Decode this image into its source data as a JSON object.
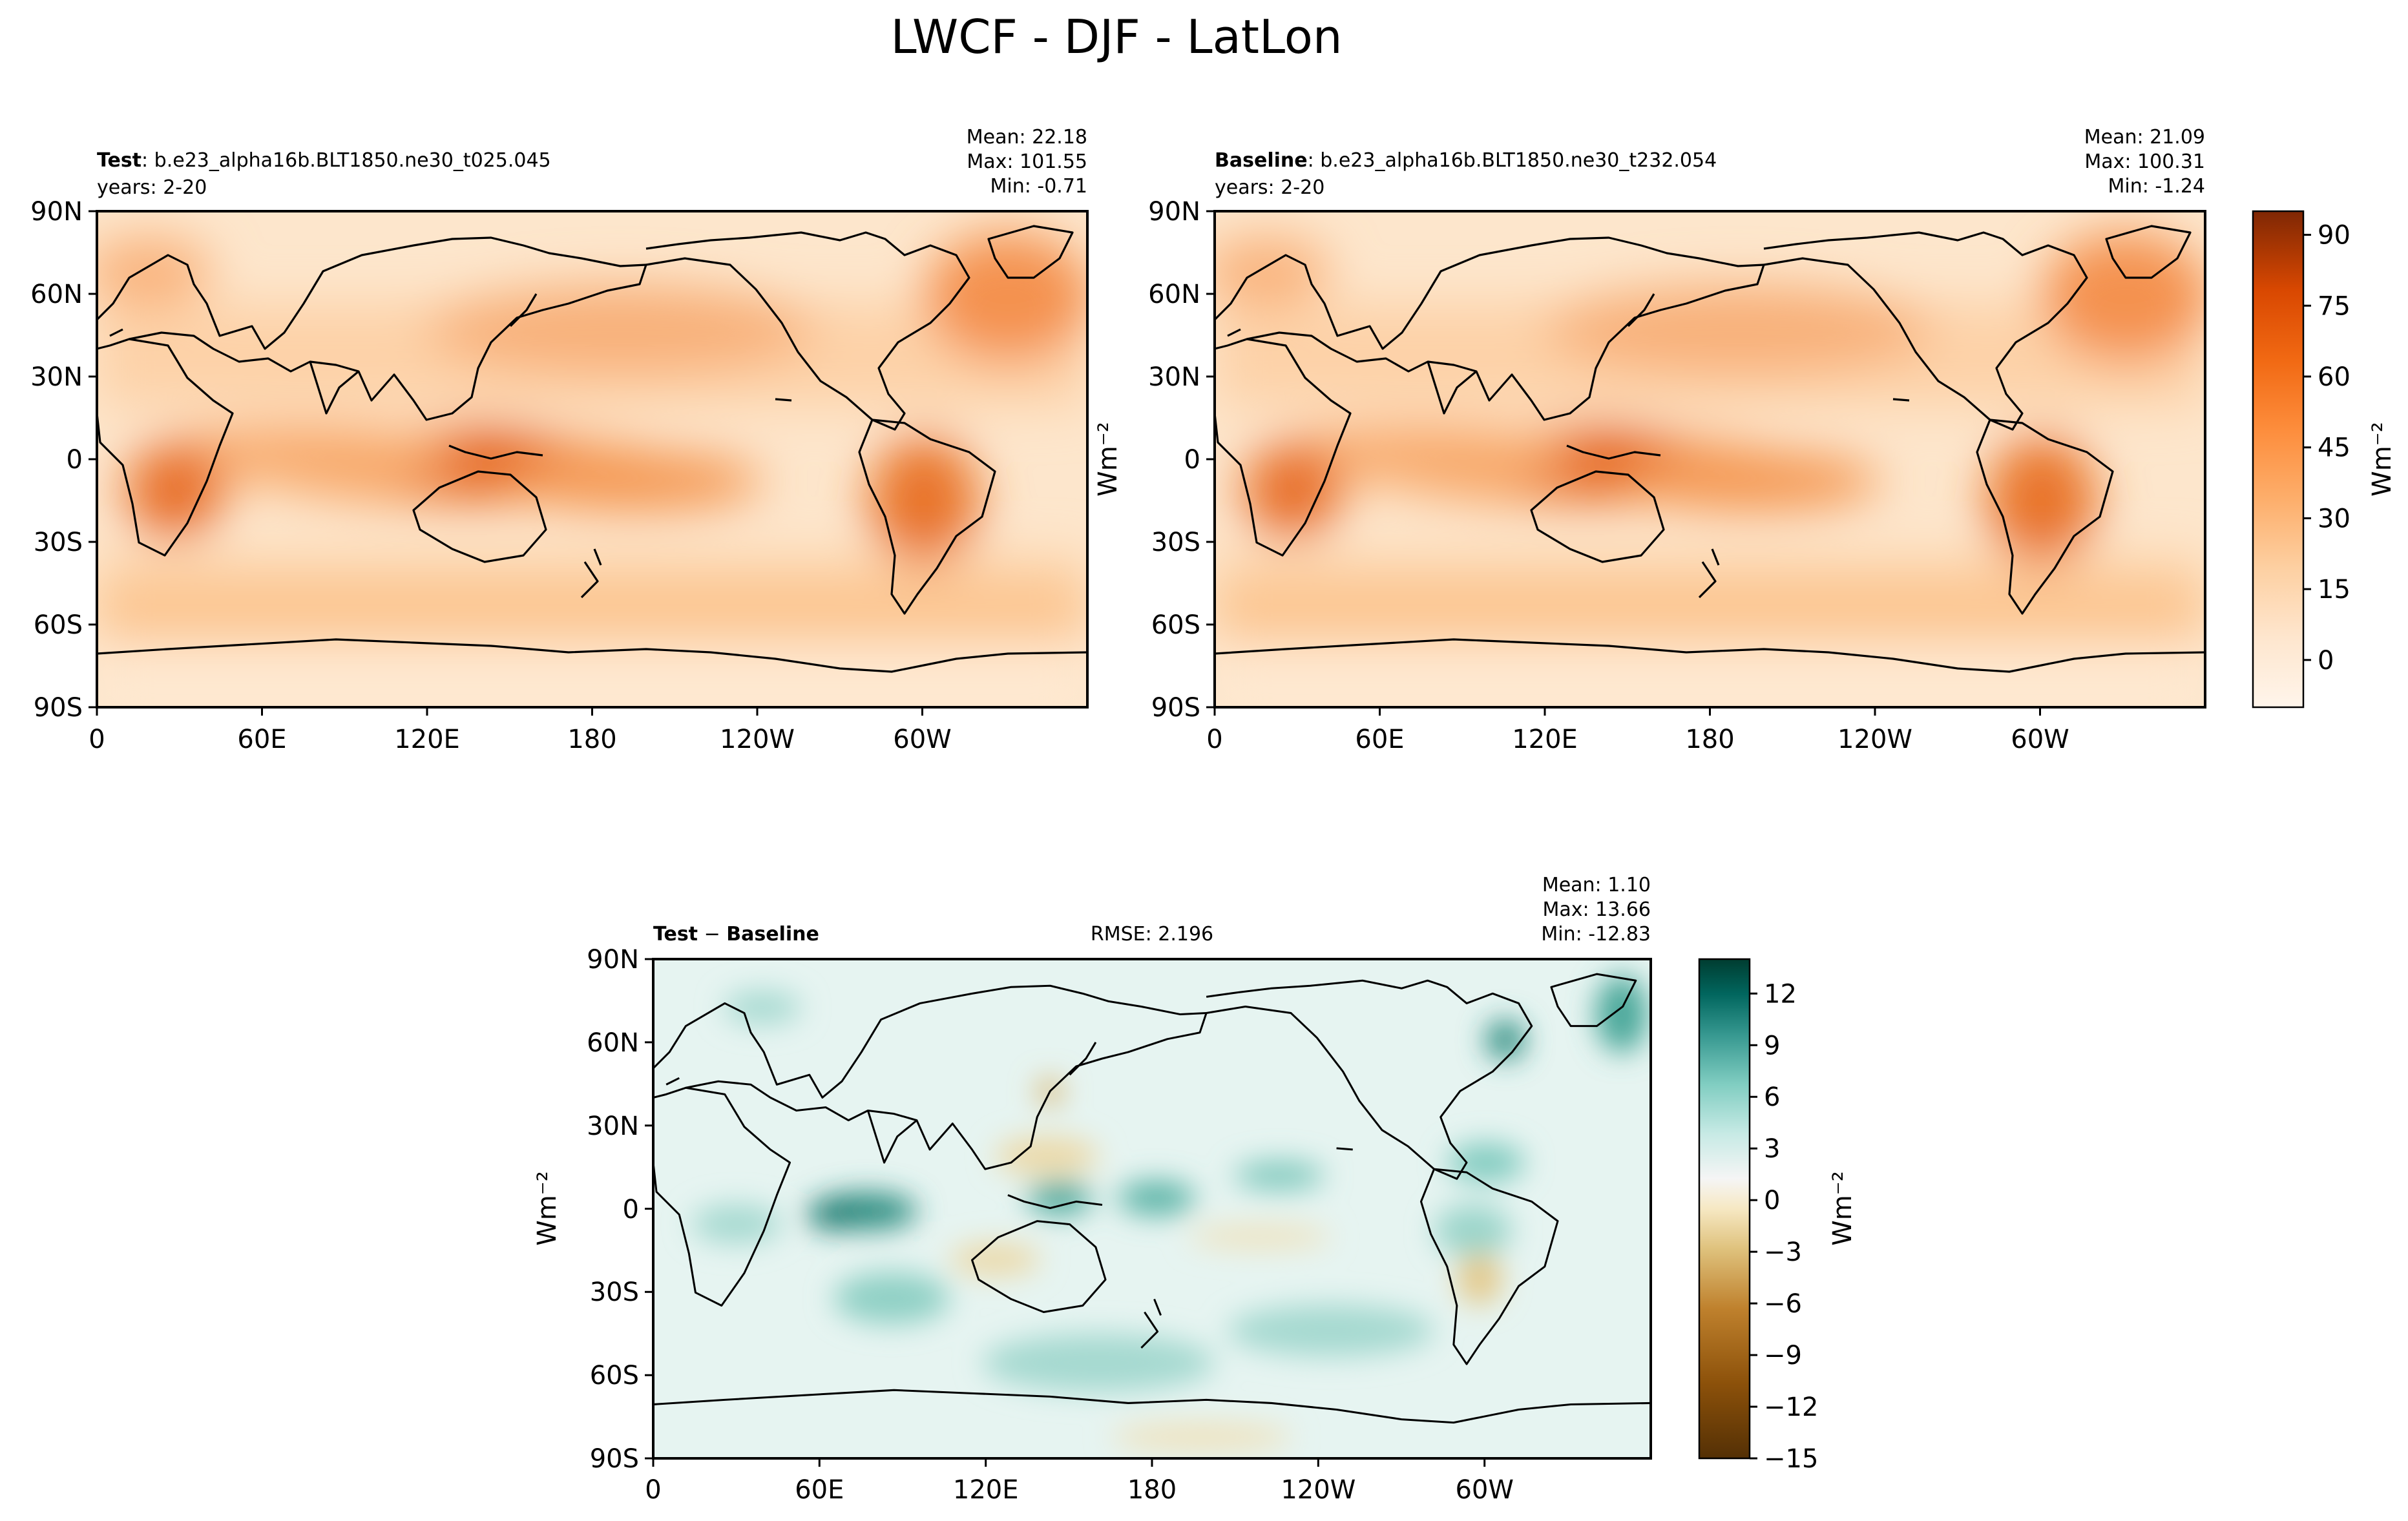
{
  "figure": {
    "title": "LWCF - DJF - LatLon"
  },
  "lon_ticks": [
    "0",
    "60E",
    "120E",
    "180",
    "120W",
    "60W"
  ],
  "lat_ticks": [
    "90N",
    "60N",
    "30N",
    "0",
    "30S",
    "60S",
    "90S"
  ],
  "panels": {
    "test": {
      "label_bold": "Test",
      "label_rest": ": b.e23_alpha16b.BLT1850.ne30_t025.045",
      "years": "years: 2-20",
      "mean": "Mean: 22.18",
      "max": "Max: 101.55",
      "min": "Min: -0.71"
    },
    "baseline": {
      "label_bold": "Baseline",
      "label_rest": ": b.e23_alpha16b.BLT1850.ne30_t232.054",
      "years": "years: 2-20",
      "mean": "Mean: 21.09",
      "max": "Max: 100.31",
      "min": "Min: -1.24"
    },
    "diff": {
      "label_bold_a": "Test",
      "label_sep": " − ",
      "label_bold_b": "Baseline",
      "rmse": "RMSE: 2.196",
      "mean": "Mean:  1.10",
      "max": "Max: 13.66",
      "min": "Min: -12.83"
    }
  },
  "colorbars": {
    "main": {
      "units_label": "Wm⁻²",
      "ticks": [
        "90",
        "75",
        "60",
        "45",
        "30",
        "15",
        "0"
      ],
      "tick_values": [
        90,
        75,
        60,
        45,
        30,
        15,
        0
      ],
      "range": [
        -10,
        95
      ],
      "colors": [
        "#fff5eb",
        "#fde3c8",
        "#fdc692",
        "#fd9e54",
        "#f4791f",
        "#d94801",
        "#a33603",
        "#7f2704"
      ]
    },
    "diff": {
      "units_label": "Wm⁻²",
      "ticks": [
        "12",
        "9",
        "6",
        "3",
        "0",
        "−3",
        "−6",
        "−9",
        "−12",
        "−15"
      ],
      "tick_values": [
        12,
        9,
        6,
        3,
        0,
        -3,
        -6,
        -9,
        -12,
        -15
      ],
      "range": [
        -15,
        14
      ],
      "colors": [
        "#543005",
        "#8c510a",
        "#bf812d",
        "#dfc27d",
        "#f6e8c3",
        "#f5f5f5",
        "#c7eae5",
        "#80cdc1",
        "#35978f",
        "#01665e",
        "#003c30"
      ]
    }
  },
  "chart_data": [
    {
      "type": "heatmap",
      "title": "Test: b.e23_alpha16b.BLT1850.ne30_t025.045",
      "subtitle": "years: 2-20",
      "x_ticks": [
        "0",
        "60E",
        "120E",
        "180",
        "120W",
        "60W"
      ],
      "y_ticks": [
        "90N",
        "60N",
        "30N",
        "0",
        "30S",
        "60S",
        "90S"
      ],
      "xlim": [
        0,
        360
      ],
      "ylim": [
        -90,
        90
      ],
      "colorbar_label": "Wm⁻²",
      "stats": {
        "mean": 22.18,
        "max": 101.55,
        "min": -0.71
      }
    },
    {
      "type": "heatmap",
      "title": "Baseline: b.e23_alpha16b.BLT1850.ne30_t232.054",
      "subtitle": "years: 2-20",
      "x_ticks": [
        "0",
        "60E",
        "120E",
        "180",
        "120W",
        "60W"
      ],
      "y_ticks": [
        "90N",
        "60N",
        "30N",
        "0",
        "30S",
        "60S",
        "90S"
      ],
      "xlim": [
        0,
        360
      ],
      "ylim": [
        -90,
        90
      ],
      "colorbar_label": "Wm⁻²",
      "colorbar_ticks": [
        90,
        75,
        60,
        45,
        30,
        15,
        0
      ],
      "stats": {
        "mean": 21.09,
        "max": 100.31,
        "min": -1.24
      }
    },
    {
      "type": "heatmap",
      "title": "Test − Baseline",
      "x_ticks": [
        "0",
        "60E",
        "120E",
        "180",
        "120W",
        "60W"
      ],
      "y_ticks": [
        "90N",
        "60N",
        "30N",
        "0",
        "30S",
        "60S",
        "90S"
      ],
      "xlim": [
        0,
        360
      ],
      "ylim": [
        -90,
        90
      ],
      "colorbar_label": "Wm⁻²",
      "colorbar_ticks": [
        12,
        9,
        6,
        3,
        0,
        -3,
        -6,
        -9,
        -12,
        -15
      ],
      "rmse": 2.196,
      "stats": {
        "mean": 1.1,
        "max": 13.66,
        "min": -12.83
      }
    }
  ]
}
